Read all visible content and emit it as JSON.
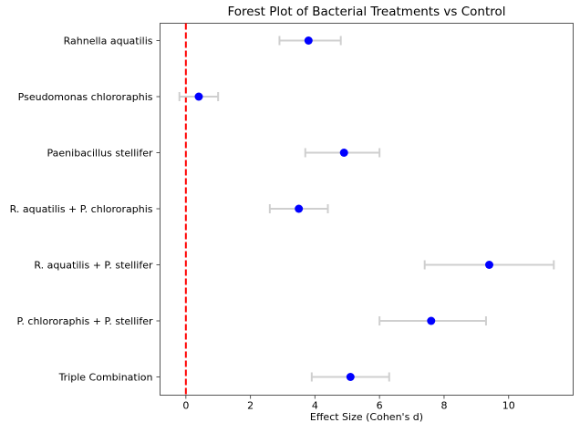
{
  "chart_data": {
    "type": "forest",
    "title": "Forest Plot of Bacterial Treatments vs Control",
    "xlabel": "Effect Size (Cohen's d)",
    "ylabel": "",
    "categories": [
      "Rahnella aquatilis",
      "Pseudomonas chlororaphis",
      "Paenibacillus stellifer",
      "R. aquatilis + P. chlororaphis",
      "R. aquatilis + P. stellifer",
      "P. chlororaphis + P. stellifer",
      "Triple Combination"
    ],
    "series": [
      {
        "values": [
          3.8,
          0.4,
          4.9,
          3.5,
          9.4,
          7.6,
          5.1
        ],
        "ci_low": [
          2.9,
          -0.2,
          3.7,
          2.6,
          7.4,
          6.0,
          3.9
        ],
        "ci_high": [
          4.8,
          1.0,
          6.0,
          4.4,
          11.4,
          9.3,
          6.3
        ]
      }
    ],
    "x_ticks": [
      0,
      2,
      4,
      6,
      8,
      10
    ],
    "xlim": [
      -0.8,
      12.0
    ],
    "reference_line": {
      "x": 0,
      "style": "dashed"
    },
    "grid": false,
    "legend": false,
    "colors": {
      "marker": "#0000ff",
      "error_bar": "#cfcfcf",
      "reference_line": "#ff0000",
      "axis": "#555555",
      "text": "#000000"
    }
  }
}
